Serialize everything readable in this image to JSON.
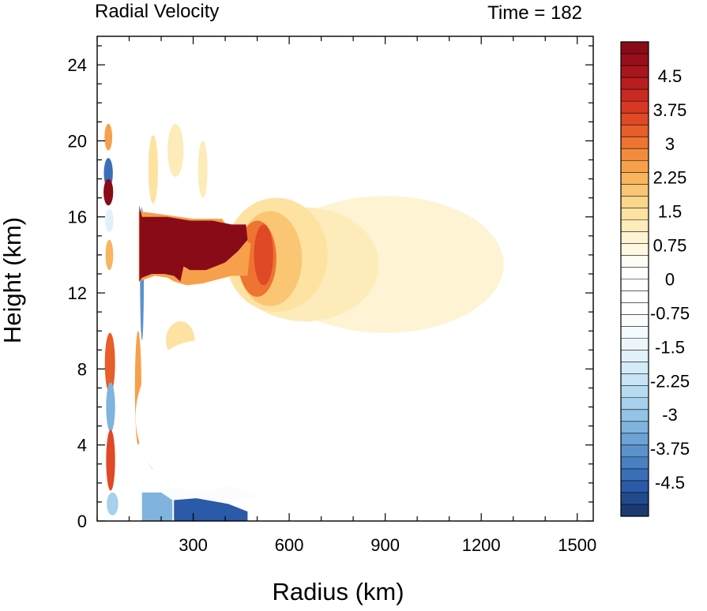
{
  "chart_data": {
    "type": "heatmap",
    "title": "Radial Velocity",
    "subtitle": "Time = 182",
    "xlabel": "Radius (km)",
    "ylabel": "Height (km)",
    "xlim": [
      0,
      1550
    ],
    "ylim": [
      0,
      25.5
    ],
    "x_ticks": [
      300,
      600,
      900,
      1200,
      1500
    ],
    "x_tick_labels": [
      "300",
      "600",
      "900",
      "1200",
      "1500"
    ],
    "y_ticks": [
      0,
      4,
      8,
      12,
      16,
      20,
      24
    ],
    "y_tick_labels": [
      "0",
      "4",
      "8",
      "12",
      "16",
      "20",
      "24"
    ],
    "grid": false,
    "colorbar": {
      "placement": "right",
      "min": -5.25,
      "max": 5.25,
      "step": 0.25,
      "tick_values": [
        4.5,
        3.75,
        3,
        2.25,
        1.5,
        0.75,
        0,
        -0.75,
        -1.5,
        -2.25,
        -3,
        -3.75,
        -4.5
      ],
      "tick_labels": [
        "4.5",
        "3.75",
        "3",
        "2.25",
        "1.5",
        "0.75",
        "0",
        "-0.75",
        "-1.5",
        "-2.25",
        "-3",
        "-3.75",
        "-4.5"
      ],
      "colors": [
        "#1a3a72",
        "#224a8e",
        "#2a5aa8",
        "#3a6fb8",
        "#4a80c2",
        "#5b92cc",
        "#6ca2d5",
        "#80b3de",
        "#93c3e6",
        "#a6d0ec",
        "#b7dbf1",
        "#c6e4f5",
        "#d4ebf8",
        "#e1f1fa",
        "#ecf6fc",
        "#f5fafe",
        "#fafcfe",
        "#ffffff",
        "#ffffff",
        "#ffffff",
        "#ffffff",
        "#fefcf2",
        "#fff8e3",
        "#fef3d2",
        "#fdebba",
        "#fde2a2",
        "#fcd68a",
        "#fbc673",
        "#f9b45e",
        "#f6a04c",
        "#f38b3e",
        "#ee7431",
        "#e65e2a",
        "#df4926",
        "#d63823",
        "#c82a22",
        "#b81e20",
        "#a8161e",
        "#980f1b",
        "#8a0b18"
      ]
    },
    "regions": [
      {
        "type": "ellipse",
        "cx": 35,
        "cy": 20.2,
        "rx": 12,
        "ry": 0.7,
        "value": 2.0
      },
      {
        "type": "ellipse",
        "cx": 35,
        "cy": 18.3,
        "rx": 14,
        "ry": 0.8,
        "value": -4.5
      },
      {
        "type": "ellipse",
        "cx": 35,
        "cy": 17.3,
        "rx": 15,
        "ry": 0.7,
        "value": 4.5
      },
      {
        "type": "ellipse",
        "cx": 38,
        "cy": 15.8,
        "rx": 13,
        "ry": 0.6,
        "value": -2.0
      },
      {
        "type": "ellipse",
        "cx": 38,
        "cy": 14.0,
        "rx": 12,
        "ry": 0.8,
        "value": 1.8
      },
      {
        "type": "ellipse",
        "cx": 40,
        "cy": 8.3,
        "rx": 16,
        "ry": 1.6,
        "value": 2.8
      },
      {
        "type": "ellipse",
        "cx": 42,
        "cy": 6.0,
        "rx": 14,
        "ry": 1.3,
        "value": -3.3
      },
      {
        "type": "ellipse",
        "cx": 42,
        "cy": 3.2,
        "rx": 14,
        "ry": 1.6,
        "value": 3.2
      },
      {
        "type": "ellipse",
        "cx": 48,
        "cy": 0.9,
        "rx": 18,
        "ry": 0.6,
        "value": -2.8
      },
      {
        "type": "ellipse",
        "cx": 140,
        "cy": 13.0,
        "rx": 6,
        "ry": 3.5,
        "value": -3.8
      },
      {
        "type": "ellipse",
        "cx": 128,
        "cy": 7.0,
        "rx": 10,
        "ry": 3.0,
        "value": 2.2
      },
      {
        "type": "ellipse",
        "cx": 175,
        "cy": 4.5,
        "rx": 25,
        "ry": 1.8,
        "value": -1.8
      },
      {
        "type": "ellipse",
        "cx": 215,
        "cy": 7.0,
        "rx": 35,
        "ry": 1.0,
        "value": 1.2
      },
      {
        "type": "ellipse",
        "cx": 260,
        "cy": 9.5,
        "rx": 45,
        "ry": 1.0,
        "value": 1.2
      },
      {
        "type": "ellipse",
        "cx": 175,
        "cy": 18.5,
        "rx": 15,
        "ry": 1.8,
        "value": 1.0
      },
      {
        "type": "ellipse",
        "cx": 245,
        "cy": 19.5,
        "rx": 25,
        "ry": 1.4,
        "value": 0.9
      },
      {
        "type": "ellipse",
        "cx": 300,
        "cy": 19.0,
        "rx": 20,
        "ry": 1.8,
        "value": -0.9
      },
      {
        "type": "ellipse",
        "cx": 330,
        "cy": 18.5,
        "rx": 15,
        "ry": 1.5,
        "value": 0.8
      },
      {
        "type": "ellipse",
        "cx": 1130,
        "cy": 20.2,
        "rx": 150,
        "ry": 0.6,
        "value": -0.6
      },
      {
        "type": "ellipse",
        "cx": 330,
        "cy": 1.0,
        "rx": 180,
        "ry": 0.9,
        "value": -1.1
      },
      {
        "type": "ellipse",
        "cx": 700,
        "cy": 0.6,
        "rx": 450,
        "ry": 0.7,
        "value": -0.6
      },
      {
        "type": "ellipse",
        "cx": 320,
        "cy": 5.5,
        "rx": 200,
        "ry": 4.0,
        "value": -0.6
      },
      {
        "type": "ellipse",
        "cx": 900,
        "cy": 13.5,
        "rx": 370,
        "ry": 3.6,
        "value": 0.6
      },
      {
        "type": "ellipse",
        "cx": 650,
        "cy": 13.5,
        "rx": 230,
        "ry": 3.0,
        "value": 0.85
      },
      {
        "type": "ellipse",
        "cx": 560,
        "cy": 14.0,
        "rx": 160,
        "ry": 3.0,
        "value": 1.2
      },
      {
        "type": "ellipse",
        "cx": 540,
        "cy": 13.8,
        "rx": 100,
        "ry": 2.5,
        "value": 1.7
      },
      {
        "type": "ellipse",
        "cx": 500,
        "cy": 13.8,
        "rx": 60,
        "ry": 2.0,
        "value": 2.6
      },
      {
        "type": "ellipse",
        "cx": 520,
        "cy": 14.0,
        "rx": 30,
        "ry": 1.6,
        "value": 3.0
      },
      {
        "type": "polygon",
        "points": [
          [
            130,
            16.3
          ],
          [
            300,
            15.9
          ],
          [
            390,
            15.9
          ],
          [
            420,
            15.2
          ],
          [
            480,
            14.6
          ],
          [
            470,
            12.9
          ],
          [
            420,
            12.9
          ],
          [
            330,
            12.5
          ],
          [
            280,
            12.4
          ],
          [
            240,
            12.6
          ],
          [
            220,
            12.8
          ],
          [
            180,
            12.9
          ],
          [
            130,
            12.6
          ]
        ],
        "value": 2.2
      },
      {
        "type": "polygon",
        "points": [
          [
            132,
            16.6
          ],
          [
            140,
            16.0
          ],
          [
            220,
            16.0
          ],
          [
            290,
            15.8
          ],
          [
            360,
            15.8
          ],
          [
            420,
            15.6
          ],
          [
            465,
            15.6
          ],
          [
            470,
            14.8
          ],
          [
            440,
            14.2
          ],
          [
            400,
            13.6
          ],
          [
            340,
            13.2
          ],
          [
            290,
            13.2
          ],
          [
            270,
            13.4
          ],
          [
            260,
            12.6
          ],
          [
            240,
            12.9
          ],
          [
            210,
            13.0
          ],
          [
            170,
            13.0
          ],
          [
            140,
            12.8
          ],
          [
            132,
            12.6
          ]
        ],
        "value": 5.0
      },
      {
        "type": "polygon",
        "points": [
          [
            240,
            1.1
          ],
          [
            310,
            1.2
          ],
          [
            410,
            0.9
          ],
          [
            470,
            0.5
          ],
          [
            470,
            0.0
          ],
          [
            240,
            0.0
          ]
        ],
        "value": -4.6
      },
      {
        "type": "polygon",
        "points": [
          [
            140,
            1.5
          ],
          [
            200,
            1.5
          ],
          [
            235,
            1.1
          ],
          [
            235,
            0.0
          ],
          [
            140,
            0.0
          ]
        ],
        "value": -3.5
      }
    ]
  }
}
